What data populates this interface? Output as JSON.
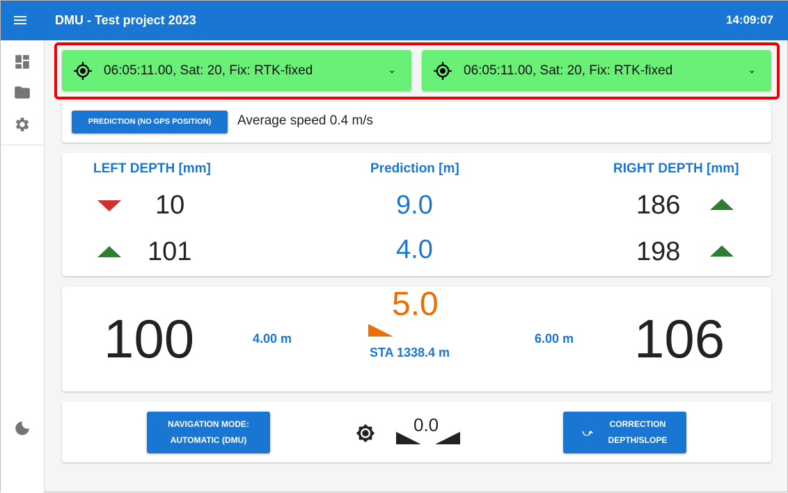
{
  "header": {
    "title": "DMU - Test project 2023",
    "time": "14:09:07"
  },
  "sidebar": {
    "items": [
      "dashboard-icon",
      "folder-icon",
      "settings-icon"
    ],
    "bottom": "dark-mode-icon"
  },
  "gps": [
    {
      "status": "06:05:11.00, Sat: 20, Fix: RTK-fixed",
      "color": "#69f076"
    },
    {
      "status": "06:05:11.00, Sat: 20, Fix: RTK-fixed",
      "color": "#69f076"
    }
  ],
  "prediction": {
    "button": "PREDICTION (NO GPS POSITION)",
    "speed": "Average speed 0.4 m/s"
  },
  "depth": {
    "left_label": "LEFT DEPTH [mm]",
    "center_label": "Prediction [m]",
    "right_label": "RIGHT DEPTH [mm]",
    "left": [
      "10",
      "101"
    ],
    "center": [
      "9.0",
      "4.0"
    ],
    "right": [
      "186",
      "198"
    ],
    "left_arrows": [
      "down",
      "up"
    ],
    "right_arrows": [
      "up",
      "up"
    ]
  },
  "main": {
    "left_value": "100",
    "left_offset": "4.00 m",
    "slope": "5.0",
    "station": "STA 1338.4 m",
    "right_offset": "6.00 m",
    "right_value": "106"
  },
  "bottom": {
    "nav_button_line1": "NAVIGATION MODE:",
    "nav_button_line2": "AUTOMATIC (DMU)",
    "tilt": "0.0",
    "correction_line1": "CORRECTION",
    "correction_line2": "DEPTH/SLOPE"
  },
  "colors": {
    "primary": "#1976d2",
    "gps_ok": "#69f076",
    "up": "#2e7d32",
    "down": "#d32f2f",
    "slope": "#ef6c00"
  }
}
